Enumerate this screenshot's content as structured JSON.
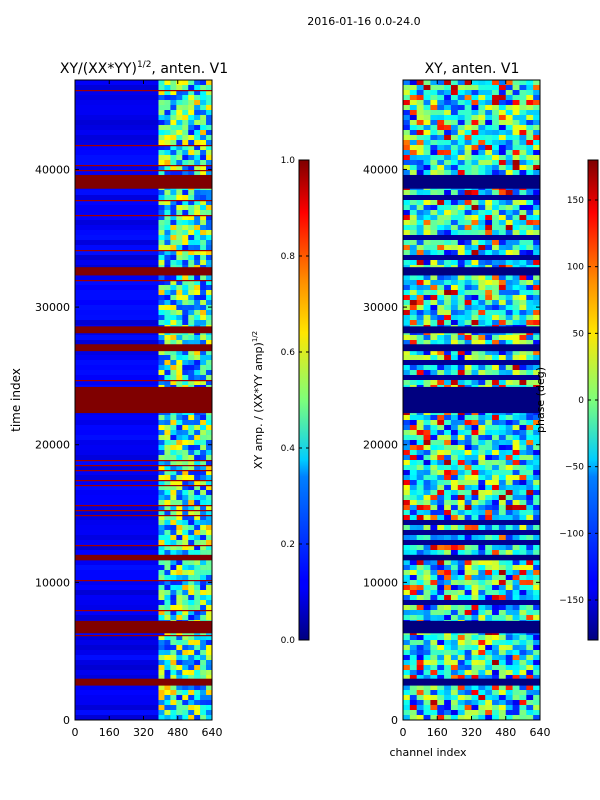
{
  "figure": {
    "suptitle": "2016-01-16 0.0-24.0"
  },
  "chart_data": [
    {
      "type": "heatmap",
      "title": "XY/(XX*YY)",
      "title_exponent": "1/2",
      "title_suffix": ", anten. V1",
      "xlabel": "",
      "ylabel": "time index",
      "xlim": [
        0,
        640
      ],
      "ylim": [
        0,
        46500
      ],
      "xticks": [
        0,
        160,
        320,
        480,
        640
      ],
      "yticks": [
        0,
        10000,
        20000,
        30000,
        40000
      ],
      "colorbar": {
        "label": "XY amp. / (XX*YY amp)",
        "label_exponent": "1/2",
        "range": [
          0.0,
          1.0
        ],
        "ticks": [
          "0.0",
          "0.2",
          "0.4",
          "0.6",
          "0.8",
          "1.0"
        ],
        "colormap": "jet"
      },
      "dominant_value": 0.1,
      "active_channel_band": [
        390,
        640
      ],
      "flagged_bands": [
        {
          "from": 2500,
          "to": 3000,
          "value": 1.0
        },
        {
          "from": 6300,
          "to": 7200,
          "value": 1.0
        },
        {
          "from": 11600,
          "to": 12000,
          "value": 1.0
        },
        {
          "from": 22300,
          "to": 24200,
          "value": 1.0
        },
        {
          "from": 26800,
          "to": 27300,
          "value": 1.0
        },
        {
          "from": 28100,
          "to": 28600,
          "value": 1.0
        },
        {
          "from": 32300,
          "to": 32900,
          "value": 1.0
        },
        {
          "from": 38600,
          "to": 39600,
          "value": 1.0
        }
      ]
    },
    {
      "type": "heatmap",
      "title": "XY, anten. V1",
      "xlabel": "channel index",
      "ylabel": "",
      "xlim": [
        0,
        640
      ],
      "ylim": [
        0,
        46500
      ],
      "xticks": [
        0,
        160,
        320,
        480,
        640
      ],
      "yticks": [
        0,
        10000,
        20000,
        30000,
        40000
      ],
      "colorbar": {
        "label": "phase (deg)",
        "range": [
          -180,
          180
        ],
        "ticks": [
          "−150",
          "−100",
          "−50",
          "0",
          "50",
          "100",
          "150"
        ],
        "colormap": "jet"
      },
      "flagged_bands": [
        {
          "from": 2500,
          "to": 3000,
          "value": -180
        },
        {
          "from": 6300,
          "to": 7200,
          "value": -180
        },
        {
          "from": 11600,
          "to": 12000,
          "value": -180
        },
        {
          "from": 22300,
          "to": 24200,
          "value": -180
        },
        {
          "from": 26800,
          "to": 27300,
          "value": -180
        },
        {
          "from": 28100,
          "to": 28600,
          "value": -180
        },
        {
          "from": 32300,
          "to": 32900,
          "value": -180
        },
        {
          "from": 38600,
          "to": 39600,
          "value": -180
        }
      ]
    }
  ]
}
